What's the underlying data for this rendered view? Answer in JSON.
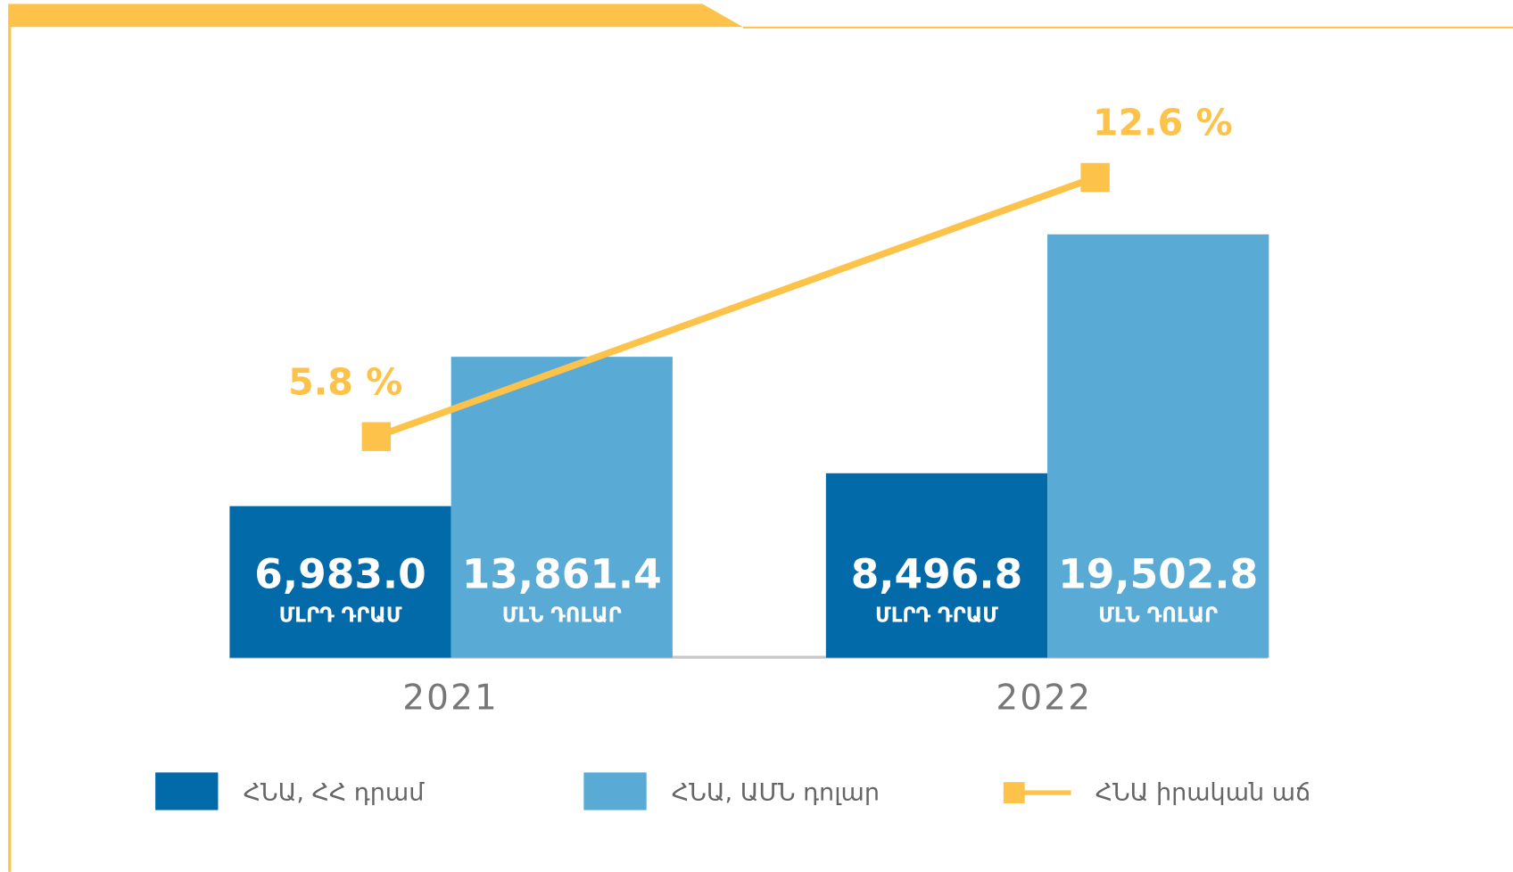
{
  "chart_data": {
    "type": "bar",
    "categories": [
      "2021",
      "2022"
    ],
    "series": [
      {
        "name": "ՀՆԱ, ՀՀ դրամ",
        "color": "#036aaa",
        "unit": "ՄԼՐԴ ԴՐԱՄ",
        "values": [
          6983.0,
          8496.8
        ],
        "value_labels": [
          "6,983.0",
          "8,496.8"
        ]
      },
      {
        "name": "ՀՆԱ, ԱՄՆ դոլար",
        "color": "#59aad5",
        "unit": "ՄԼՆ ԴՈԼԱՐ",
        "values": [
          13861.4,
          19502.8
        ],
        "value_labels": [
          "13,861.4",
          "19,502.8"
        ]
      },
      {
        "name": "ՀՆԱ իրական աճ",
        "type": "line",
        "axis": "y2",
        "color": "#fdc24a",
        "values": [
          5.8,
          12.6
        ],
        "value_labels": [
          "5.8 %",
          "12.6 %"
        ]
      }
    ]
  }
}
